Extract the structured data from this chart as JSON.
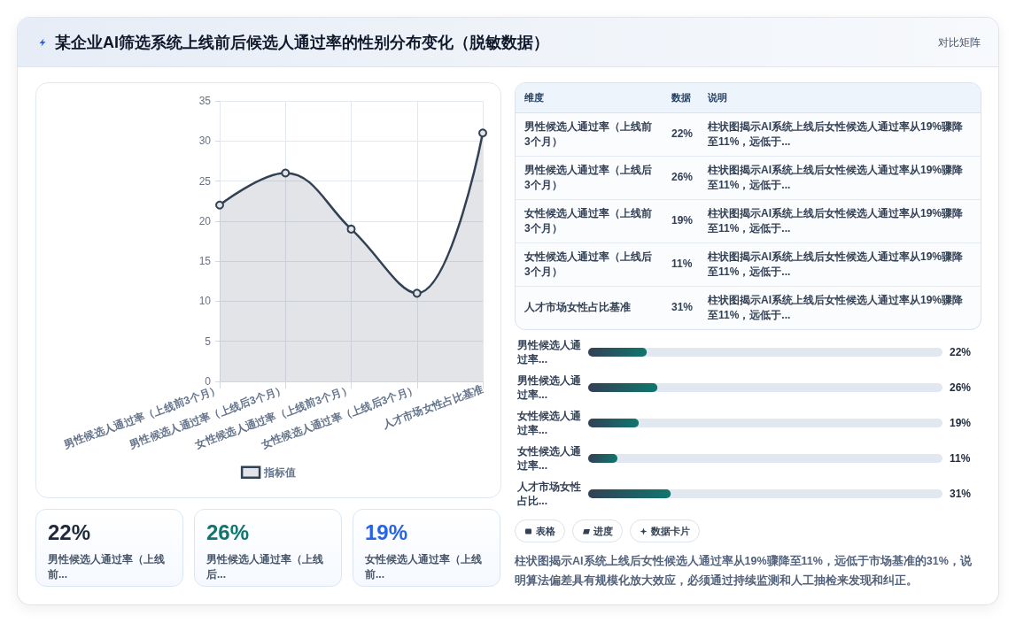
{
  "chart_data": [
    {
      "type": "other",
      "title": "某企业AI筛选系统上线前后候选人通过率的性别分布变化（脱敏数据）",
      "subtitle": "对比矩阵"
    },
    {
      "type": "area",
      "categories": [
        "男性候选人通过率（上线前3个月）",
        "男性候选人通过率（上线后3个月）",
        "女性候选人通过率（上线前3个月）",
        "女性候选人通过率（上线后3个月）",
        "人才市场女性占比基准"
      ],
      "series": [
        {
          "name": "指标值",
          "color": "#334155",
          "values": [
            22,
            26,
            19,
            11,
            31
          ]
        }
      ],
      "ylim": [
        0,
        35
      ],
      "yticks": [
        0,
        5,
        10,
        15,
        20,
        25,
        30,
        35
      ],
      "grid": true,
      "legend": "bottom",
      "marker": "circle"
    },
    {
      "type": "other",
      "categories": [
        "男性候选人通过率（上线前3个月）",
        "男性候选人通过率（上线后3个月）",
        "女性候选人通过率（上线前3个月）",
        "女性候选人通过率（上线后3个月）",
        "人才市场女性占比基准"
      ],
      "value_labels": [
        "22%",
        "26%",
        "19%",
        "11%",
        "31%"
      ],
      "annotations": [
        "维度",
        "数据",
        "说明",
        "柱状图揭示AI系统上线后女性候选人通过率从19%骤降至11%，远低于...",
        "柱状图揭示AI系统上线后女性候选人通过率从19%骤降至11%，远低于...",
        "柱状图揭示AI系统上线后女性候选人通过率从19%骤降至11%，远低于...",
        "柱状图揭示AI系统上线后女性候选人通过率从19%骤降至11%，远低于...",
        "柱状图揭示AI系统上线后女性候选人通过率从19%骤降至11%，远低于..."
      ]
    },
    {
      "type": "bar",
      "orientation": "horizontal",
      "categories": [
        "男性候选人通过率...",
        "男性候选人通过率...",
        "女性候选人通过率...",
        "女性候选人通过率...",
        "人才市场女性占比..."
      ],
      "values": [
        22,
        26,
        19,
        11,
        31
      ],
      "value_labels": [
        "22%",
        "26%",
        "19%",
        "11%",
        "31%"
      ],
      "color": "#0f766e",
      "xlim": [
        0,
        133
      ],
      "tick_labels": "y"
    },
    {
      "type": "other",
      "categories": [
        "男性候选人通过率（上线前...",
        "男性候选人通过率（上线后...",
        "女性候选人通过率（上线前..."
      ],
      "value_labels": [
        "22%",
        "26%",
        "19%"
      ],
      "colors": [
        "#1e293b",
        "#0f766e",
        "#2563eb"
      ]
    },
    {
      "type": "other",
      "annotations": [
        "表格",
        "进度",
        "数据卡片",
        "柱状图揭示AI系统上线后女性候选人通过率从19%骤降至11%，远低于市场基准的31%，说明算法偏差具有规模化放大效应，必须通过持续监测和人工抽检来发现和纠正。"
      ]
    }
  ]
}
